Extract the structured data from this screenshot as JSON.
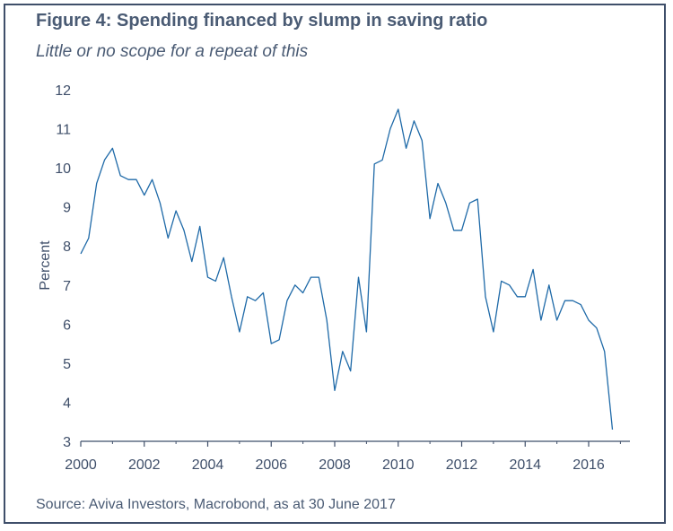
{
  "figure": {
    "title": "Figure 4: Spending financed by slump in saving ratio",
    "subtitle": "Little or no scope for a repeat of this",
    "source": "Source: Aviva Investors, Macrobond, as at 30 June 2017"
  },
  "colors": {
    "line": "#1f6aa8",
    "text": "#4a5b74",
    "axis": "#3f4f6a",
    "border": "#3f4f6a"
  },
  "chart_data": {
    "type": "line",
    "title": "",
    "xlabel": "",
    "ylabel": "Percent",
    "xlim": [
      2000,
      2017.3
    ],
    "ylim": [
      3,
      12
    ],
    "grid": false,
    "legend": "none",
    "xticks": [
      2000,
      2002,
      2004,
      2006,
      2008,
      2010,
      2012,
      2014,
      2016
    ],
    "yticks": [
      3,
      4,
      5,
      6,
      7,
      8,
      9,
      10,
      11,
      12
    ],
    "series": [
      {
        "frequency": "quarterly",
        "x": [
          2000.0,
          2000.25,
          2000.5,
          2000.75,
          2001.0,
          2001.25,
          2001.5,
          2001.75,
          2002.0,
          2002.25,
          2002.5,
          2002.75,
          2003.0,
          2003.25,
          2003.5,
          2003.75,
          2004.0,
          2004.25,
          2004.5,
          2004.75,
          2005.0,
          2005.25,
          2005.5,
          2005.75,
          2006.0,
          2006.25,
          2006.5,
          2006.75,
          2007.0,
          2007.25,
          2007.5,
          2007.75,
          2008.0,
          2008.25,
          2008.5,
          2008.75,
          2009.0,
          2009.25,
          2009.5,
          2009.75,
          2010.0,
          2010.25,
          2010.5,
          2010.75,
          2011.0,
          2011.25,
          2011.5,
          2011.75,
          2012.0,
          2012.25,
          2012.5,
          2012.75,
          2013.0,
          2013.25,
          2013.5,
          2013.75,
          2014.0,
          2014.25,
          2014.5,
          2014.75,
          2015.0,
          2015.25,
          2015.5,
          2015.75,
          2016.0,
          2016.25,
          2016.5,
          2016.75
        ],
        "values": [
          7.8,
          8.2,
          9.6,
          10.2,
          10.5,
          9.8,
          9.7,
          9.7,
          9.3,
          9.7,
          9.1,
          8.2,
          8.9,
          8.4,
          7.6,
          8.5,
          7.2,
          7.1,
          7.7,
          6.7,
          5.8,
          6.7,
          6.6,
          6.8,
          5.5,
          5.6,
          6.6,
          7.0,
          6.8,
          7.2,
          7.2,
          6.1,
          4.3,
          5.3,
          4.8,
          7.2,
          5.8,
          10.1,
          10.2,
          11.0,
          11.5,
          10.5,
          11.2,
          10.7,
          8.7,
          9.6,
          9.1,
          8.4,
          8.4,
          9.1,
          9.2,
          6.7,
          5.8,
          7.1,
          7.0,
          6.7,
          6.7,
          7.4,
          6.1,
          7.0,
          6.1,
          6.6,
          6.6,
          6.5,
          6.1,
          5.9,
          5.3,
          3.3
        ]
      }
    ]
  }
}
